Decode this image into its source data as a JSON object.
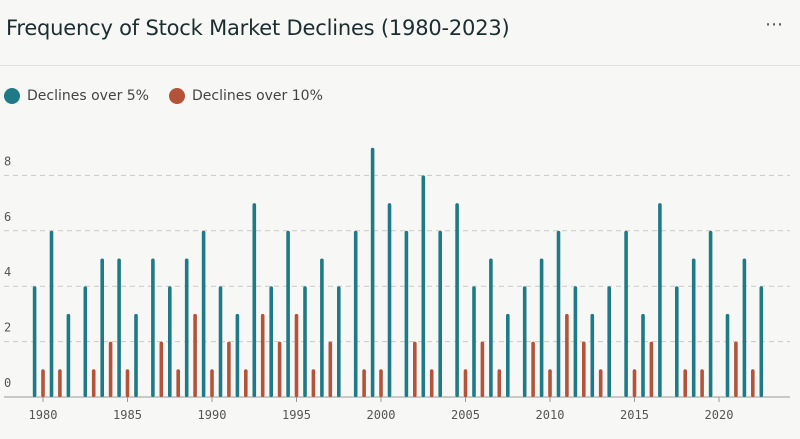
{
  "header": {
    "title": "Frequency of Stock Market Declines (1980-2023)",
    "menu_glyph": "⋯"
  },
  "legend": [
    {
      "label": "Declines over 5%",
      "color": "#1f7a87"
    },
    {
      "label": "Declines over 10%",
      "color": "#b2533a"
    }
  ],
  "chart_data": {
    "type": "bar",
    "title": "Frequency of Stock Market Declines (1980-2023)",
    "categories": [
      1980,
      1981,
      1982,
      1983,
      1984,
      1985,
      1986,
      1987,
      1988,
      1989,
      1990,
      1991,
      1992,
      1993,
      1994,
      1995,
      1996,
      1997,
      1998,
      1999,
      2000,
      2001,
      2002,
      2003,
      2004,
      2005,
      2006,
      2007,
      2008,
      2009,
      2010,
      2011,
      2012,
      2013,
      2014,
      2015,
      2016,
      2017,
      2018,
      2019,
      2020,
      2021,
      2022,
      2023
    ],
    "series": [
      {
        "name": "Declines over 5%",
        "color": "#1f7a87",
        "values": [
          4,
          6,
          3,
          4,
          5,
          5,
          3,
          5,
          4,
          5,
          6,
          4,
          3,
          7,
          4,
          6,
          4,
          5,
          4,
          6,
          9,
          7,
          6,
          8,
          6,
          7,
          4,
          5,
          3,
          4,
          5,
          6,
          4,
          3,
          4,
          6,
          3,
          7,
          4,
          5,
          6,
          3,
          5,
          4
        ]
      },
      {
        "name": "Declines over 10%",
        "color": "#b2533a",
        "values": [
          1,
          1,
          0,
          1,
          2,
          1,
          0,
          2,
          1,
          3,
          1,
          2,
          1,
          3,
          2,
          3,
          1,
          2,
          0,
          1,
          1,
          0,
          2,
          1,
          0,
          1,
          2,
          1,
          0,
          2,
          1,
          3,
          2,
          1,
          0,
          1,
          2,
          0,
          1,
          1,
          0,
          2,
          1,
          0
        ]
      }
    ],
    "xticks": [
      "1980",
      "1985",
      "1990",
      "1995",
      "2000",
      "2005",
      "2010",
      "2015",
      "2020"
    ],
    "yticks": [
      "0",
      "2",
      "4",
      "6",
      "8"
    ],
    "ylim": [
      0,
      9
    ],
    "grid": true,
    "legend_position": "top-left"
  }
}
